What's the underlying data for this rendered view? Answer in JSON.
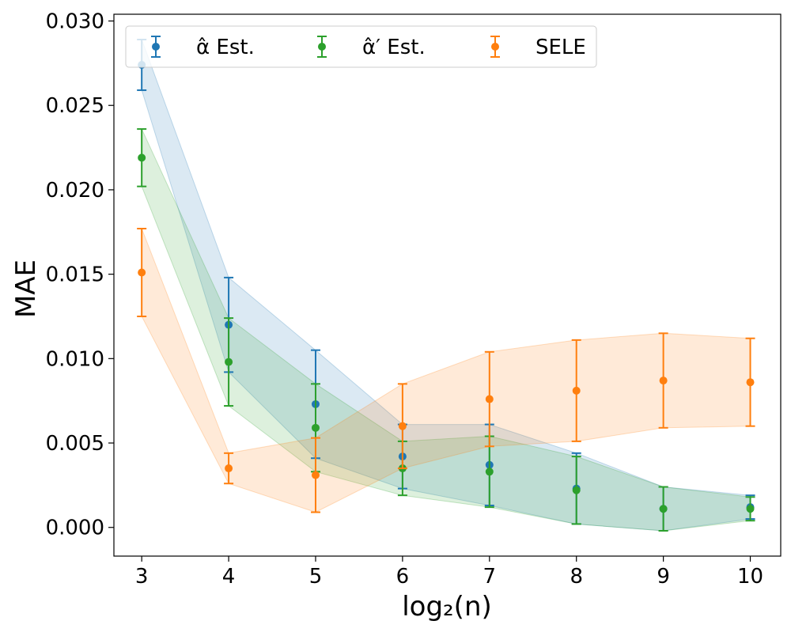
{
  "chart_data": {
    "type": "line",
    "title": "",
    "xlabel": "log₂(n)",
    "ylabel": "MAE",
    "x": [
      3,
      4,
      5,
      6,
      7,
      8,
      9,
      10
    ],
    "xlim": [
      2.68,
      10.35
    ],
    "ylim": [
      -0.0017,
      0.0304
    ],
    "x_ticks": [
      3,
      4,
      5,
      6,
      7,
      8,
      9,
      10
    ],
    "y_ticks": [
      0.0,
      0.005,
      0.01,
      0.015,
      0.02,
      0.025,
      0.03
    ],
    "y_tick_labels": [
      "0.000",
      "0.005",
      "0.010",
      "0.015",
      "0.020",
      "0.025",
      "0.030"
    ],
    "grid": false,
    "legend_position": "top-left",
    "series": [
      {
        "name": "α̂ Est.",
        "color": "#1f77b4",
        "values": [
          0.0274,
          0.012,
          0.0073,
          0.0042,
          0.0037,
          0.0023,
          0.0011,
          0.0012
        ],
        "lower": [
          0.0259,
          0.0092,
          0.0041,
          0.0023,
          0.0013,
          0.0002,
          -0.0002,
          0.0005
        ],
        "upper": [
          0.0289,
          0.0148,
          0.0105,
          0.0061,
          0.0061,
          0.0044,
          0.0024,
          0.0019
        ]
      },
      {
        "name": "α̂′ Est.",
        "color": "#2ca02c",
        "values": [
          0.0219,
          0.0098,
          0.0059,
          0.0035,
          0.0033,
          0.0022,
          0.0011,
          0.0011
        ],
        "lower": [
          0.0202,
          0.0072,
          0.0033,
          0.0019,
          0.0012,
          0.0002,
          -0.0002,
          0.0004
        ],
        "upper": [
          0.0236,
          0.0124,
          0.0085,
          0.0051,
          0.0054,
          0.0042,
          0.0024,
          0.0018
        ]
      },
      {
        "name": "SELE",
        "color": "#ff7f0e",
        "values": [
          0.0151,
          0.0035,
          0.0031,
          0.006,
          0.0076,
          0.0081,
          0.0087,
          0.0086
        ],
        "lower": [
          0.0125,
          0.0026,
          0.0009,
          0.0035,
          0.0048,
          0.0051,
          0.0059,
          0.006
        ],
        "upper": [
          0.0177,
          0.0044,
          0.0053,
          0.0085,
          0.0104,
          0.0111,
          0.0115,
          0.0112
        ]
      }
    ]
  }
}
